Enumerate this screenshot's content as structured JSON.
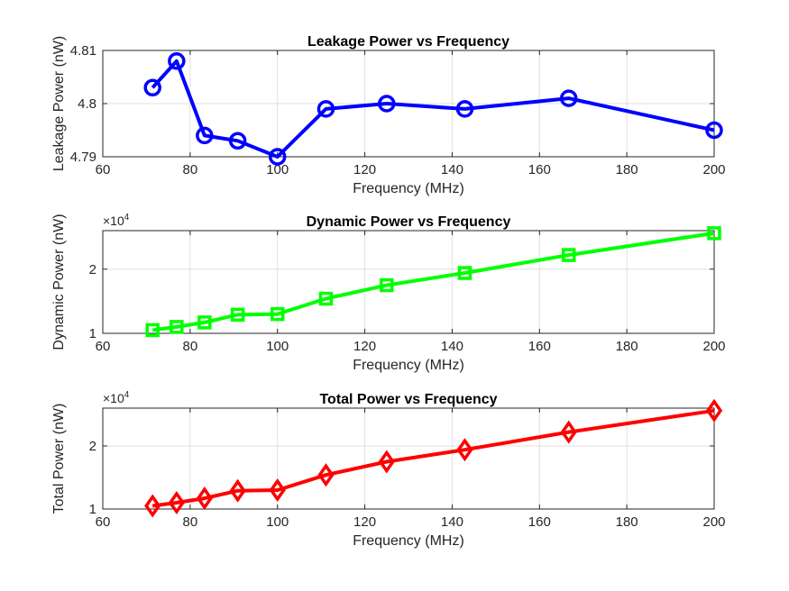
{
  "chart_data": [
    {
      "type": "line",
      "title": "Leakage Power vs Frequency",
      "xlabel": "Frequency (MHz)",
      "ylabel": "Leakage Power (nW)",
      "xlim": [
        60,
        200
      ],
      "ylim": [
        4.79,
        4.81
      ],
      "xticks": [
        "60",
        "80",
        "100",
        "120",
        "140",
        "160",
        "180",
        "200"
      ],
      "yticks": [
        "4.79",
        "4.8",
        "4.81"
      ],
      "grid": true,
      "series": [
        {
          "color": "#0000ff",
          "marker": "circle",
          "x": [
            71.4,
            76.9,
            83.3,
            90.9,
            100,
            111.1,
            125,
            142.9,
            166.7,
            200
          ],
          "y": [
            4.803,
            4.808,
            4.794,
            4.793,
            4.79,
            4.799,
            4.8,
            4.799,
            4.801,
            4.795
          ]
        }
      ]
    },
    {
      "type": "line",
      "title": "Dynamic Power vs Frequency",
      "xlabel": "Frequency (MHz)",
      "ylabel": "Dynamic Power (nW)",
      "xlim": [
        60,
        200
      ],
      "ylim": [
        10000,
        26000
      ],
      "xticks": [
        "60",
        "80",
        "100",
        "120",
        "140",
        "160",
        "180",
        "200"
      ],
      "yticks": [
        "1",
        "2"
      ],
      "exponent_base": "×10",
      "exponent": "4",
      "grid": true,
      "series": [
        {
          "color": "#00ff00",
          "marker": "square",
          "x": [
            71.4,
            76.9,
            83.3,
            90.9,
            100,
            111.1,
            125,
            142.9,
            166.7,
            200
          ],
          "y": [
            10500,
            11000,
            11700,
            12900,
            13000,
            15400,
            17500,
            19400,
            22200,
            25600
          ]
        }
      ]
    },
    {
      "type": "line",
      "title": "Total Power vs Frequency",
      "xlabel": "Frequency (MHz)",
      "ylabel": "Total Power (nW)",
      "xlim": [
        60,
        200
      ],
      "ylim": [
        10000,
        26000
      ],
      "xticks": [
        "60",
        "80",
        "100",
        "120",
        "140",
        "160",
        "180",
        "200"
      ],
      "yticks": [
        "1",
        "2"
      ],
      "exponent_base": "×10",
      "exponent": "4",
      "grid": true,
      "series": [
        {
          "color": "#ff0000",
          "marker": "diamond",
          "x": [
            71.4,
            76.9,
            83.3,
            90.9,
            100,
            111.1,
            125,
            142.9,
            166.7,
            200
          ],
          "y": [
            10500,
            11000,
            11700,
            12900,
            13000,
            15400,
            17500,
            19400,
            22200,
            25600
          ]
        }
      ]
    }
  ]
}
